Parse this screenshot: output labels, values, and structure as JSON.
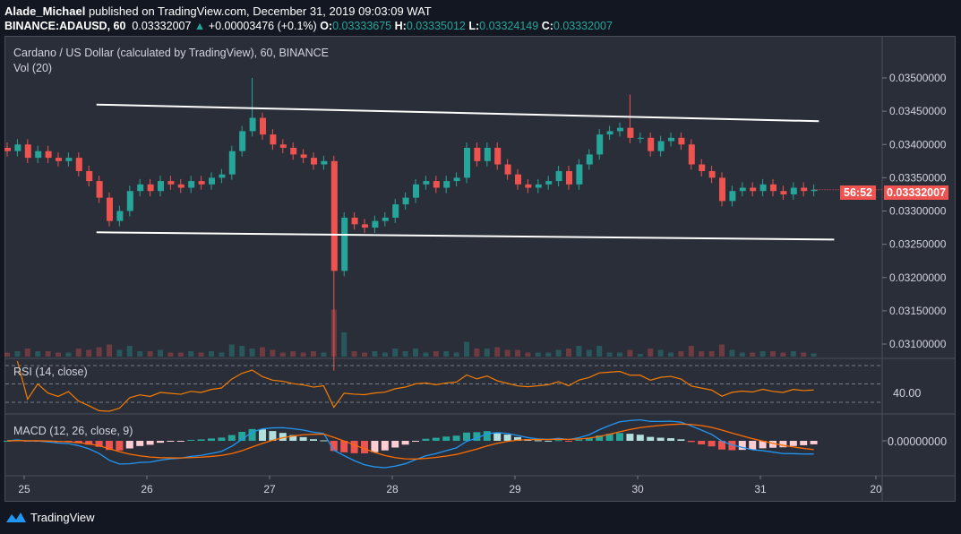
{
  "header": {
    "author": "Alade_Michael",
    "published": "published on TradingView.com, December 31, 2019 09:03:09 WAT",
    "symbol": "BINANCE:ADAUSD, 60",
    "last": "0.03332007",
    "change": "+0.00003476 (+0.1%)",
    "o_label": "O:",
    "o": "0.03333675",
    "h_label": "H:",
    "h": "0.03335012",
    "l_label": "L:",
    "l": "0.03324149",
    "c_label": "C:",
    "c": "0.03332007"
  },
  "legend": {
    "title": "Cardano / US Dollar (calculated by TradingView), 60, BINANCE",
    "volume": "Vol (20)",
    "rsi": "RSI (14, close)",
    "macd": "MACD (12, 26, close, 9)"
  },
  "price_badge": {
    "price": "0.03332007",
    "countdown": "56:52"
  },
  "footer": {
    "brand": "TradingView"
  },
  "colors": {
    "up": "#26a69a",
    "down": "#ef5350",
    "rsi": "#f57c00",
    "macd": "#2196f3",
    "signal": "#ff6d00",
    "trendline": "#ffffff",
    "background": "#2a2e39"
  },
  "chart_data": {
    "type": "candlestick",
    "interval": "2h sampled (chart is 60m)",
    "start": "2019-12-24 20:00",
    "closes": [
      0.0339,
      0.034,
      0.0338,
      0.0339,
      0.0338,
      0.03375,
      0.0338,
      0.0336,
      0.03345,
      0.0332,
      0.03285,
      0.033,
      0.0333,
      0.0334,
      0.0333,
      0.03345,
      0.0334,
      0.03335,
      0.03345,
      0.0334,
      0.0335,
      0.03355,
      0.0339,
      0.0342,
      0.0344,
      0.03415,
      0.034,
      0.03395,
      0.03385,
      0.0338,
      0.0337,
      0.03375,
      0.0321,
      0.0329,
      0.0328,
      0.03275,
      0.03285,
      0.0329,
      0.0331,
      0.0332,
      0.0334,
      0.03345,
      0.03335,
      0.03345,
      0.0335,
      0.03395,
      0.03375,
      0.03395,
      0.0337,
      0.03355,
      0.0334,
      0.03335,
      0.0334,
      0.03345,
      0.0336,
      0.0334,
      0.0337,
      0.03385,
      0.03415,
      0.0342,
      0.03425,
      0.0341,
      0.0341,
      0.0339,
      0.03405,
      0.0341,
      0.034,
      0.0337,
      0.0336,
      0.0335,
      0.03315,
      0.0333,
      0.03335,
      0.0333,
      0.0334,
      0.0333,
      0.03325,
      0.03335,
      0.0333,
      0.03332007
    ],
    "notable_extremes": [
      {
        "index": 24,
        "high": 0.035
      },
      {
        "index": 32,
        "low": 0.0306
      },
      {
        "index": 61,
        "high": 0.03475
      }
    ],
    "trendlines": [
      {
        "name": "upper",
        "from": [
          "2019-12-25 13:30",
          0.0346
        ],
        "to": [
          "2019-12-31 11:00",
          0.03435
        ]
      },
      {
        "name": "lower",
        "from": [
          "2019-12-25 13:30",
          0.03268
        ],
        "to": [
          "2019-12-31 14:00",
          0.03257
        ]
      }
    ],
    "y_ticks": [
      "0.03500000",
      "0.03450000",
      "0.03400000",
      "0.03350000",
      "0.03300000",
      "0.03250000",
      "0.03200000",
      "0.03150000",
      "0.03100000"
    ],
    "ylim": [
      0.03085,
      0.0353
    ],
    "x_ticks": [
      "25",
      "26",
      "27",
      "28",
      "29",
      "30",
      "31",
      "20"
    ],
    "rsi": {
      "period": 14,
      "label": "40.00",
      "levels": [
        70,
        50,
        30
      ]
    },
    "macd": {
      "fast": 12,
      "slow": 26,
      "signal": 9,
      "label": "0.00000000"
    }
  }
}
